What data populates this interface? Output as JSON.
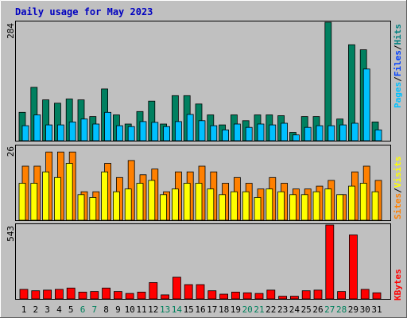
{
  "chart_data": [
    {
      "type": "bar",
      "title": "Daily usage for May 2023",
      "ymax_label": "284",
      "legend": [
        "Pages",
        "/",
        "Files",
        "/",
        "Hits"
      ],
      "legend_colors": [
        "#00c0ff",
        "#000000",
        "#0040ff",
        "#000000",
        "#008080"
      ],
      "series": [
        {
          "name": "Hits",
          "color": "#008060",
          "values": [
            68,
            128,
            98,
            90,
            100,
            98,
            58,
            124,
            62,
            40,
            70,
            95,
            40,
            108,
            108,
            88,
            62,
            38,
            62,
            48,
            62,
            62,
            60,
            20,
            58,
            58,
            284,
            52,
            230,
            218,
            45
          ]
        },
        {
          "name": "Files",
          "color": "#00c0ff",
          "values": [
            36,
            62,
            38,
            38,
            45,
            52,
            40,
            68,
            36,
            34,
            46,
            44,
            34,
            46,
            63,
            48,
            36,
            26,
            40,
            32,
            40,
            38,
            42,
            14,
            32,
            36,
            36,
            38,
            42,
            172,
            26
          ]
        },
        {
          "name": "Pages",
          "color": "#00c0ff",
          "values": [
            36,
            62,
            38,
            38,
            45,
            52,
            40,
            68,
            36,
            34,
            46,
            44,
            34,
            46,
            63,
            48,
            36,
            26,
            40,
            32,
            40,
            38,
            42,
            14,
            32,
            36,
            36,
            38,
            42,
            172,
            26
          ]
        }
      ]
    },
    {
      "type": "bar",
      "ymax_label": "26",
      "legend": [
        "Sites",
        "/",
        "Visits"
      ],
      "legend_colors": [
        "#ff8000",
        "#000000",
        "#ffff00"
      ],
      "series": [
        {
          "name": "Visits",
          "color": "#ffff00",
          "values": [
            13,
            13,
            17,
            15,
            20,
            9,
            8,
            17,
            10,
            11,
            13,
            14,
            9,
            11,
            13,
            13,
            11,
            9,
            10,
            10,
            8,
            11,
            10,
            9,
            9,
            10,
            11,
            9,
            12,
            13,
            10
          ]
        },
        {
          "name": "Sites",
          "color": "#ff8000",
          "values": [
            19,
            19,
            24,
            24,
            24,
            10,
            10,
            20,
            15,
            21,
            16,
            18,
            10,
            17,
            17,
            19,
            17,
            13,
            15,
            13,
            11,
            15,
            13,
            11,
            11,
            12,
            14,
            9,
            17,
            19,
            14
          ]
        }
      ]
    },
    {
      "type": "bar",
      "ymax_label": "543",
      "legend": [
        "KBytes"
      ],
      "legend_colors": [
        "#ff0000"
      ],
      "series": [
        {
          "name": "KBytes",
          "color": "#ff0000",
          "values": [
            70,
            60,
            65,
            70,
            80,
            50,
            55,
            80,
            55,
            40,
            50,
            120,
            30,
            160,
            105,
            105,
            60,
            35,
            50,
            45,
            40,
            65,
            20,
            20,
            60,
            65,
            543,
            55,
            470,
            70,
            45
          ]
        }
      ]
    },
    {
      "type": "x-axis",
      "days": [
        "1",
        "2",
        "3",
        "4",
        "5",
        "6",
        "7",
        "8",
        "9",
        "10",
        "11",
        "12",
        "13",
        "14",
        "15",
        "16",
        "17",
        "18",
        "19",
        "20",
        "21",
        "22",
        "23",
        "24",
        "25",
        "26",
        "27",
        "28",
        "29",
        "30",
        "31"
      ],
      "weekend_days": [
        6,
        7,
        13,
        14,
        20,
        21,
        27,
        28
      ],
      "weekday_color": "#000000",
      "weekend_color": "#00805c"
    }
  ]
}
